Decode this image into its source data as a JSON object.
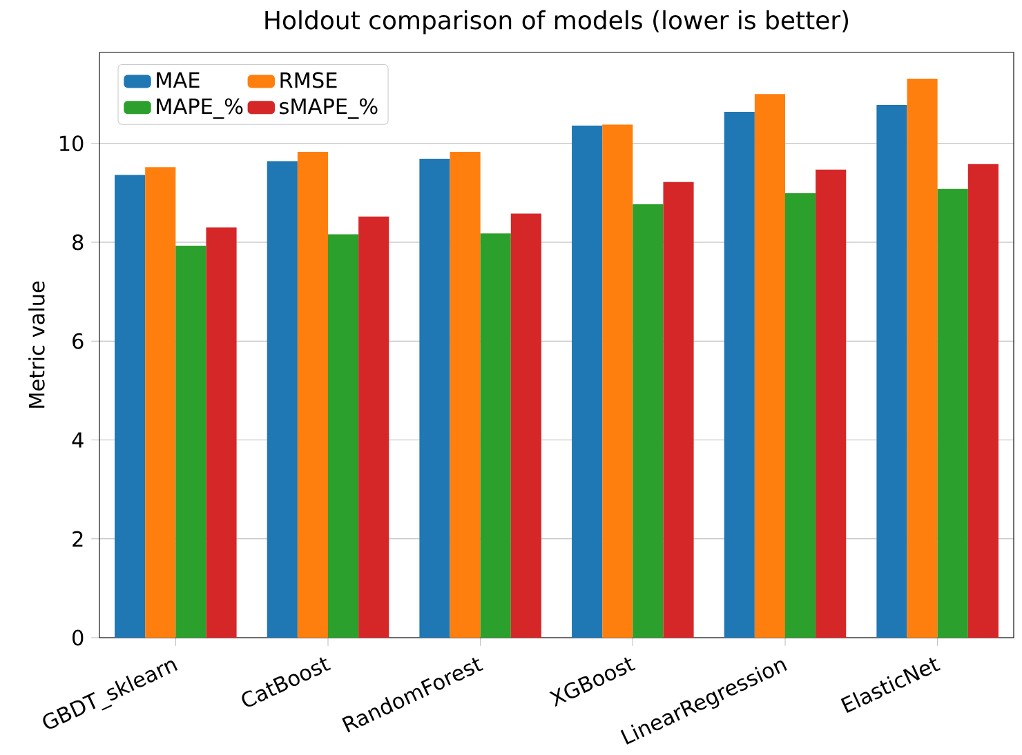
{
  "chart_data": {
    "type": "bar",
    "title": "Holdout comparison of models (lower is better)",
    "ylabel": "Metric value",
    "categories": [
      "GBDT_sklearn",
      "CatBoost",
      "RandomForest",
      "XGBoost",
      "LinearRegression",
      "ElasticNet"
    ],
    "series": [
      {
        "name": "MAE",
        "color": "#1f77b4",
        "values": [
          9.36,
          9.64,
          9.69,
          10.36,
          10.64,
          10.78
        ]
      },
      {
        "name": "RMSE",
        "color": "#ff7f0e",
        "values": [
          9.52,
          9.83,
          9.83,
          10.38,
          11.0,
          11.31
        ]
      },
      {
        "name": "MAPE_%",
        "color": "#2ca02c",
        "values": [
          7.93,
          8.16,
          8.18,
          8.77,
          8.99,
          9.08
        ]
      },
      {
        "name": "sMAPE_%",
        "color": "#d62728",
        "values": [
          8.3,
          8.52,
          8.58,
          9.22,
          9.47,
          9.58
        ]
      }
    ],
    "ylim": [
      0,
      11.84
    ],
    "yticks": [
      0,
      2,
      4,
      6,
      8,
      10
    ],
    "grid": "y",
    "legend": "top left"
  }
}
